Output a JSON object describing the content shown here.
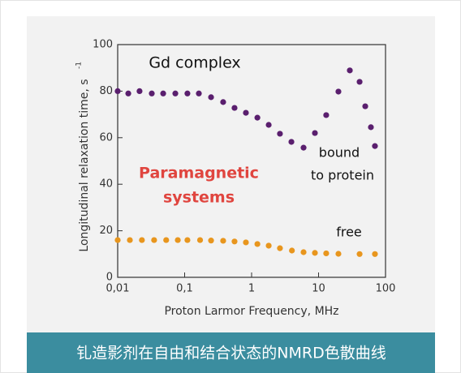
{
  "chart_data": {
    "type": "scatter",
    "x_label": "Proton Larmor Frequency, MHz",
    "y_label": "Longitudinal relaxation time, s",
    "y_label_sup": "-1",
    "xscale": "log",
    "xlim": [
      0.01,
      100
    ],
    "xticks": [
      {
        "value": 0.01,
        "label": "0,01"
      },
      {
        "value": 0.1,
        "label": "0,1"
      },
      1,
      10,
      100
    ],
    "ylim": [
      0,
      100
    ],
    "yticks": [
      0,
      20,
      40,
      60,
      80,
      100
    ],
    "grid": false,
    "series": [
      {
        "name": "bound to protein",
        "color": "#5a1f6e",
        "x": [
          0.01,
          0.0144,
          0.0212,
          0.0323,
          0.0478,
          0.0726,
          0.11,
          0.163,
          0.248,
          0.376,
          0.556,
          0.822,
          1.22,
          1.8,
          2.65,
          3.93,
          5.97,
          8.82,
          13.0,
          19.8,
          29.3,
          41,
          49.8,
          60.5,
          69.5
        ],
        "values": [
          80,
          79,
          80,
          79,
          79,
          79,
          79,
          79,
          77.4,
          75.3,
          72.8,
          70.7,
          68.6,
          65.5,
          61.7,
          58.2,
          55.7,
          62,
          69.7,
          79.8,
          88.9,
          84,
          73.5,
          64.5,
          56.4
        ]
      },
      {
        "name": "free",
        "color": "#e8961e",
        "x": [
          0.01,
          0.0152,
          0.023,
          0.035,
          0.053,
          0.079,
          0.11,
          0.17,
          0.248,
          0.376,
          0.556,
          0.822,
          1.22,
          1.8,
          2.65,
          4.0,
          5.97,
          8.82,
          13.0,
          19.8,
          41,
          69.5
        ],
        "values": [
          16,
          16,
          16,
          16,
          16,
          16,
          16,
          16,
          15.8,
          15.7,
          15.4,
          15,
          14.3,
          13.6,
          12.5,
          11.5,
          10.8,
          10.5,
          10.3,
          10.1,
          10,
          10
        ]
      }
    ],
    "annotations": [
      {
        "text": "Gd complex",
        "color": "#111111"
      },
      {
        "text": "Paramagnetic",
        "color": "#e0453f"
      },
      {
        "text": "systems",
        "color": "#e0453f"
      },
      {
        "text": "bound",
        "color": "#111111"
      },
      {
        "text": "to protein",
        "color": "#111111"
      },
      {
        "text": "free",
        "color": "#111111"
      }
    ],
    "caption": "钆造影剂在自由和结合状态的NMRD色散曲线"
  }
}
